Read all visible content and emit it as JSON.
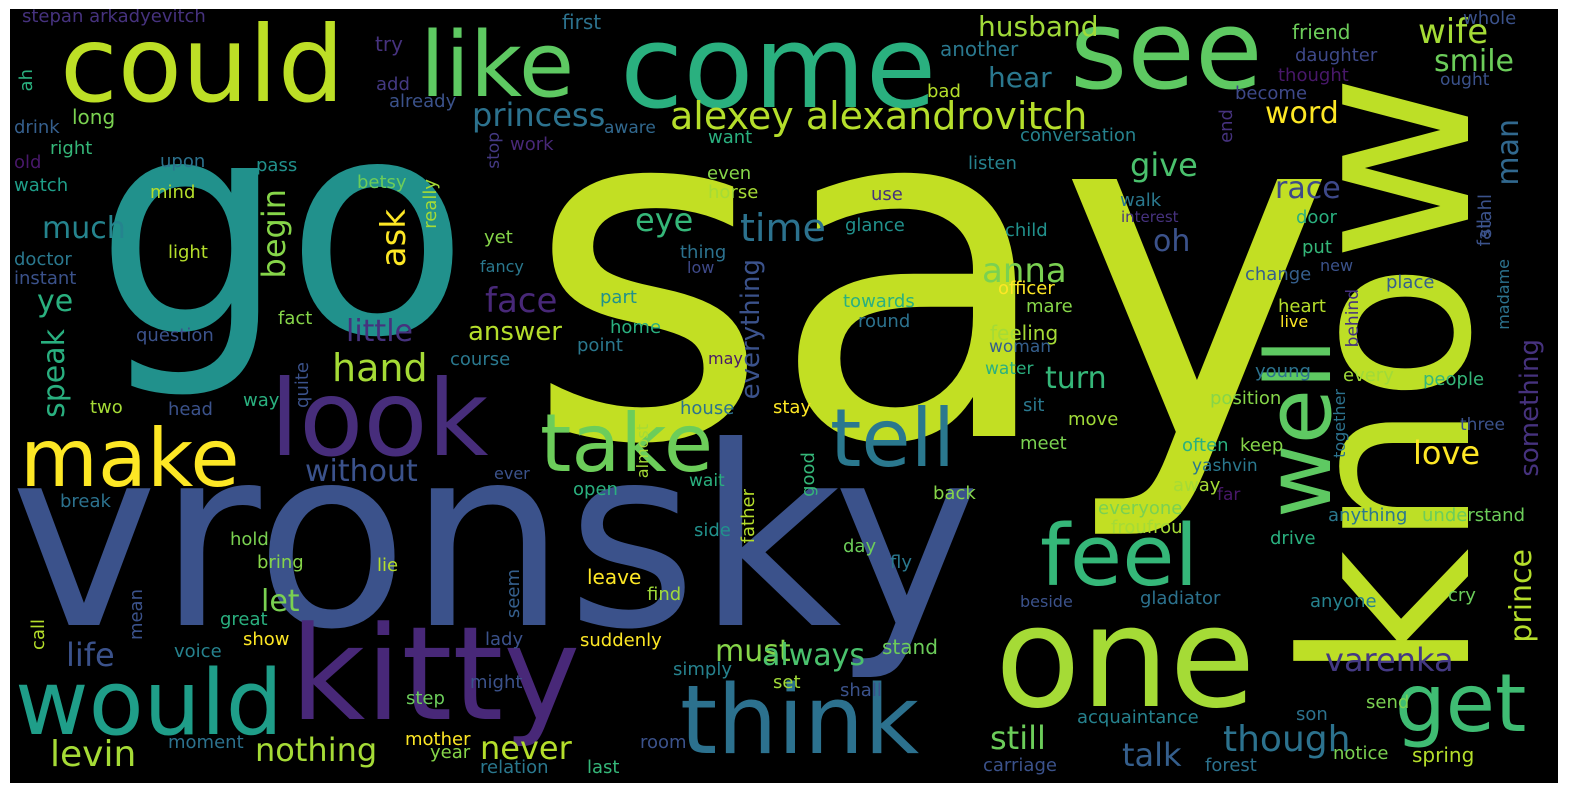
{
  "wordcloud": {
    "words": [
      {
        "text": "say",
        "color": "#c2df23"
      },
      {
        "text": "go",
        "color": "#21918c"
      },
      {
        "text": "vronsky",
        "color": "#3b528b"
      },
      {
        "text": "know",
        "color": "#bddf26"
      },
      {
        "text": "come",
        "color": "#2ab07f"
      },
      {
        "text": "see",
        "color": "#5ec962"
      },
      {
        "text": "could",
        "color": "#bddf26"
      },
      {
        "text": "like",
        "color": "#5ec962"
      },
      {
        "text": "one",
        "color": "#a5db36"
      },
      {
        "text": "kitty",
        "color": "#482878"
      },
      {
        "text": "look",
        "color": "#472d7b"
      },
      {
        "text": "would",
        "color": "#1f9e89"
      },
      {
        "text": "think",
        "color": "#2c718e"
      },
      {
        "text": "make",
        "color": "#fde725"
      },
      {
        "text": "take",
        "color": "#6ccd5a"
      },
      {
        "text": "tell",
        "color": "#2a788e"
      },
      {
        "text": "well",
        "color": "#5ec962"
      },
      {
        "text": "feel",
        "color": "#35b779"
      },
      {
        "text": "get",
        "color": "#3fbc73"
      },
      {
        "text": "alexey alexandrovitch",
        "color": "#b5de2b"
      },
      {
        "text": "princess",
        "color": "#2c728e"
      },
      {
        "text": "husband",
        "color": "#a0da39"
      },
      {
        "text": "wife",
        "color": "#a5db36"
      },
      {
        "text": "smile",
        "color": "#6ccd5a"
      },
      {
        "text": "hear",
        "color": "#2a788e"
      },
      {
        "text": "word",
        "color": "#fde725"
      },
      {
        "text": "man",
        "color": "#31688e"
      },
      {
        "text": "give",
        "color": "#4ac16d"
      },
      {
        "text": "race",
        "color": "#3e4989"
      },
      {
        "text": "eye",
        "color": "#35b779"
      },
      {
        "text": "time",
        "color": "#2c728e"
      },
      {
        "text": "ask",
        "color": "#fde725"
      },
      {
        "text": "begin",
        "color": "#86d549"
      },
      {
        "text": "much",
        "color": "#25848e"
      },
      {
        "text": "anna",
        "color": "#7ad151"
      },
      {
        "text": "oh",
        "color": "#3b528b"
      },
      {
        "text": "face",
        "color": "#482878"
      },
      {
        "text": "answer",
        "color": "#b5de2b"
      },
      {
        "text": "ye",
        "color": "#2ab07f"
      },
      {
        "text": "little",
        "color": "#46327e"
      },
      {
        "text": "hand",
        "color": "#a5db36"
      },
      {
        "text": "speak",
        "color": "#29af7f"
      },
      {
        "text": "turn",
        "color": "#35b779"
      },
      {
        "text": "without",
        "color": "#3b528b"
      },
      {
        "text": "everything",
        "color": "#3b528b"
      },
      {
        "text": "love",
        "color": "#fde725"
      },
      {
        "text": "something",
        "color": "#46327e"
      },
      {
        "text": "prince",
        "color": "#b5de2b"
      },
      {
        "text": "let",
        "color": "#7ad151"
      },
      {
        "text": "must",
        "color": "#86d549"
      },
      {
        "text": "always",
        "color": "#4ac16d"
      },
      {
        "text": "varenka",
        "color": "#443983"
      },
      {
        "text": "life",
        "color": "#3b528b"
      },
      {
        "text": "levin",
        "color": "#a5db36"
      },
      {
        "text": "nothing",
        "color": "#a5db36"
      },
      {
        "text": "never",
        "color": "#b5de2b"
      },
      {
        "text": "talk",
        "color": "#355f8d"
      },
      {
        "text": "still",
        "color": "#6ccd5a"
      },
      {
        "text": "though",
        "color": "#2c728e"
      },
      {
        "text": "stepan arkadyevitch",
        "color": "#46327e"
      },
      {
        "text": "first",
        "color": "#2c728e"
      },
      {
        "text": "try",
        "color": "#46327e"
      },
      {
        "text": "another",
        "color": "#2a788e"
      },
      {
        "text": "friend",
        "color": "#6ccd5a"
      },
      {
        "text": "daughter",
        "color": "#3e4989"
      },
      {
        "text": "whole",
        "color": "#3b528b"
      },
      {
        "text": "thought",
        "color": "#48186a"
      },
      {
        "text": "ought",
        "color": "#3b528b"
      },
      {
        "text": "ah",
        "color": "#2ab07f"
      },
      {
        "text": "add",
        "color": "#443983"
      },
      {
        "text": "already",
        "color": "#3b528b"
      },
      {
        "text": "bad",
        "color": "#b5de2b"
      },
      {
        "text": "become",
        "color": "#3e4989"
      },
      {
        "text": "long",
        "color": "#7ad151"
      },
      {
        "text": "aware",
        "color": "#31688e"
      },
      {
        "text": "want",
        "color": "#2ab07f"
      },
      {
        "text": "conversation",
        "color": "#26828e"
      },
      {
        "text": "end",
        "color": "#46327e"
      },
      {
        "text": "drink",
        "color": "#355f8d"
      },
      {
        "text": "work",
        "color": "#482878"
      },
      {
        "text": "right",
        "color": "#35b779"
      },
      {
        "text": "stop",
        "color": "#443983"
      },
      {
        "text": "old",
        "color": "#48186a"
      },
      {
        "text": "upon",
        "color": "#2c728e"
      },
      {
        "text": "pass",
        "color": "#21918c"
      },
      {
        "text": "listen",
        "color": "#26828e"
      },
      {
        "text": "watch",
        "color": "#1f9e89"
      },
      {
        "text": "mind",
        "color": "#b5de2b"
      },
      {
        "text": "even",
        "color": "#86d549"
      },
      {
        "text": "horse",
        "color": "#a5db36"
      },
      {
        "text": "betsy",
        "color": "#6ccd5a"
      },
      {
        "text": "use",
        "color": "#46327e"
      },
      {
        "text": "walk",
        "color": "#2a788e"
      },
      {
        "text": "interest",
        "color": "#46327e"
      },
      {
        "text": "really",
        "color": "#a5db36"
      },
      {
        "text": "glance",
        "color": "#21918c"
      },
      {
        "text": "door",
        "color": "#2ab07f"
      },
      {
        "text": "stahl",
        "color": "#3b528b"
      },
      {
        "text": "fall",
        "color": "#3b528b"
      },
      {
        "text": "child",
        "color": "#21918c"
      },
      {
        "text": "yet",
        "color": "#86d549"
      },
      {
        "text": "thing",
        "color": "#2c728e"
      },
      {
        "text": "low",
        "color": "#3e4989"
      },
      {
        "text": "doctor",
        "color": "#2a788e"
      },
      {
        "text": "light",
        "color": "#b5de2b"
      },
      {
        "text": "put",
        "color": "#35b779"
      },
      {
        "text": "new",
        "color": "#3b528b"
      },
      {
        "text": "change",
        "color": "#355f8d"
      },
      {
        "text": "instant",
        "color": "#3b528b"
      },
      {
        "text": "fancy",
        "color": "#2a788e"
      },
      {
        "text": "madame",
        "color": "#2c728e"
      },
      {
        "text": "place",
        "color": "#355f8d"
      },
      {
        "text": "officer",
        "color": "#fde725"
      },
      {
        "text": "mare",
        "color": "#86d549"
      },
      {
        "text": "part",
        "color": "#21918c"
      },
      {
        "text": "fact",
        "color": "#86d549"
      },
      {
        "text": "towards",
        "color": "#2ab07f"
      },
      {
        "text": "heart",
        "color": "#b5de2b"
      },
      {
        "text": "question",
        "color": "#3b528b"
      },
      {
        "text": "home",
        "color": "#2ab07f"
      },
      {
        "text": "round",
        "color": "#2c728e"
      },
      {
        "text": "live",
        "color": "#fde725"
      },
      {
        "text": "behind",
        "color": "#46327e"
      },
      {
        "text": "point",
        "color": "#2a788e"
      },
      {
        "text": "feeling",
        "color": "#a5db36"
      },
      {
        "text": "course",
        "color": "#2a788e"
      },
      {
        "text": "woman",
        "color": "#355f8d"
      },
      {
        "text": "may",
        "color": "#48186a"
      },
      {
        "text": "young",
        "color": "#2c728e"
      },
      {
        "text": "every",
        "color": "#a0da39"
      },
      {
        "text": "water",
        "color": "#2ab07f"
      },
      {
        "text": "people",
        "color": "#35b779"
      },
      {
        "text": "stay",
        "color": "#fde725"
      },
      {
        "text": "quite",
        "color": "#3b528b"
      },
      {
        "text": "way",
        "color": "#2ab07f"
      },
      {
        "text": "position",
        "color": "#86d549"
      },
      {
        "text": "two",
        "color": "#a5db36"
      },
      {
        "text": "head",
        "color": "#3b528b"
      },
      {
        "text": "house",
        "color": "#2c728e"
      },
      {
        "text": "sit",
        "color": "#2a788e"
      },
      {
        "text": "move",
        "color": "#a0da39"
      },
      {
        "text": "three",
        "color": "#3b528b"
      },
      {
        "text": "together",
        "color": "#2c728e"
      },
      {
        "text": "meet",
        "color": "#7ad151"
      },
      {
        "text": "often",
        "color": "#2ab07f"
      },
      {
        "text": "keep",
        "color": "#86d549"
      },
      {
        "text": "almost",
        "color": "#a5db36"
      },
      {
        "text": "ever",
        "color": "#3b528b"
      },
      {
        "text": "good",
        "color": "#35b779"
      },
      {
        "text": "yashvin",
        "color": "#2a788e"
      },
      {
        "text": "wait",
        "color": "#2ab07f"
      },
      {
        "text": "break",
        "color": "#2c728e"
      },
      {
        "text": "open",
        "color": "#2ab07f"
      },
      {
        "text": "away",
        "color": "#a5db36"
      },
      {
        "text": "far",
        "color": "#48186a"
      },
      {
        "text": "back",
        "color": "#86d549"
      },
      {
        "text": "everyone",
        "color": "#7ad151"
      },
      {
        "text": "side",
        "color": "#21918c"
      },
      {
        "text": "froufrou",
        "color": "#a5db36"
      },
      {
        "text": "anything",
        "color": "#2a788e"
      },
      {
        "text": "understand",
        "color": "#6ccd5a"
      },
      {
        "text": "hold",
        "color": "#7ad151"
      },
      {
        "text": "father",
        "color": "#b5de2b"
      },
      {
        "text": "day",
        "color": "#6ccd5a"
      },
      {
        "text": "drive",
        "color": "#2ab07f"
      },
      {
        "text": "bring",
        "color": "#86d549"
      },
      {
        "text": "lie",
        "color": "#b5de2b"
      },
      {
        "text": "fly",
        "color": "#2a788e"
      },
      {
        "text": "leave",
        "color": "#fde725"
      },
      {
        "text": "mean",
        "color": "#3b528b"
      },
      {
        "text": "seem",
        "color": "#355f8d"
      },
      {
        "text": "find",
        "color": "#a0da39"
      },
      {
        "text": "beside",
        "color": "#3b528b"
      },
      {
        "text": "gladiator",
        "color": "#2c728e"
      },
      {
        "text": "cry",
        "color": "#6ccd5a"
      },
      {
        "text": "anyone",
        "color": "#26828e"
      },
      {
        "text": "great",
        "color": "#2ab07f"
      },
      {
        "text": "call",
        "color": "#b5de2b"
      },
      {
        "text": "show",
        "color": "#fde725"
      },
      {
        "text": "suddenly",
        "color": "#fde725"
      },
      {
        "text": "stand",
        "color": "#6ccd5a"
      },
      {
        "text": "lady",
        "color": "#3b528b"
      },
      {
        "text": "voice",
        "color": "#26828e"
      },
      {
        "text": "simply",
        "color": "#26828e"
      },
      {
        "text": "might",
        "color": "#3b528b"
      },
      {
        "text": "set",
        "color": "#a0da39"
      },
      {
        "text": "shall",
        "color": "#3b528b"
      },
      {
        "text": "step",
        "color": "#6ccd5a"
      },
      {
        "text": "acquaintance",
        "color": "#26828e"
      },
      {
        "text": "send",
        "color": "#7ad151"
      },
      {
        "text": "son",
        "color": "#2c728e"
      },
      {
        "text": "moment",
        "color": "#2c728e"
      },
      {
        "text": "mother",
        "color": "#fde725"
      },
      {
        "text": "room",
        "color": "#3b528b"
      },
      {
        "text": "year",
        "color": "#86d549"
      },
      {
        "text": "relation",
        "color": "#2a788e"
      },
      {
        "text": "last",
        "color": "#35b779"
      },
      {
        "text": "carriage",
        "color": "#3b528b"
      },
      {
        "text": "forest",
        "color": "#2c728e"
      },
      {
        "text": "notice",
        "color": "#7ad151"
      },
      {
        "text": "spring",
        "color": "#b5de2b"
      }
    ]
  }
}
